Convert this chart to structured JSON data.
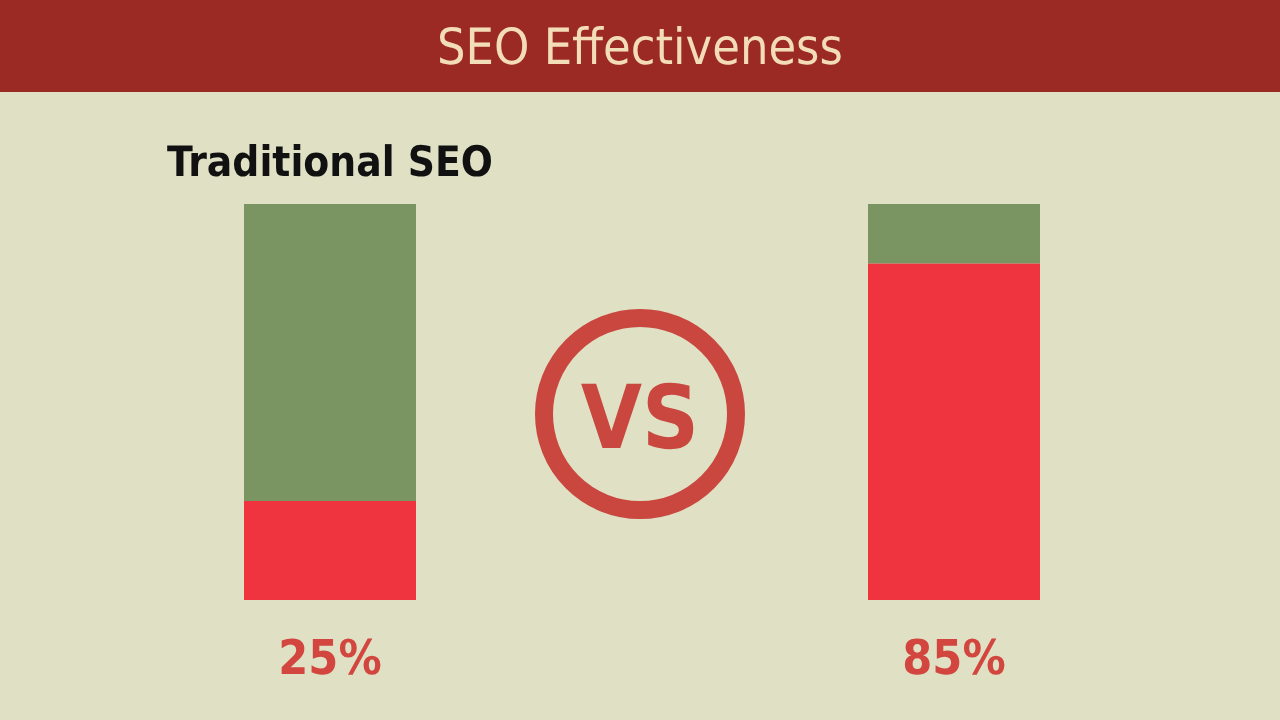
{
  "chart_data": {
    "type": "bar",
    "title": "SEO Effectiveness",
    "categories": [
      "Traditional SEO",
      null
    ],
    "stacked": true,
    "ylim": [
      0,
      100
    ],
    "tick_labels": false,
    "series": [
      {
        "color": "#f0343f",
        "values": [
          25,
          85
        ],
        "value_labels": [
          "25%",
          "85%"
        ]
      },
      {
        "color": "#7a9462",
        "values": [
          75,
          15
        ]
      }
    ],
    "annotations": [
      "VS"
    ]
  }
}
